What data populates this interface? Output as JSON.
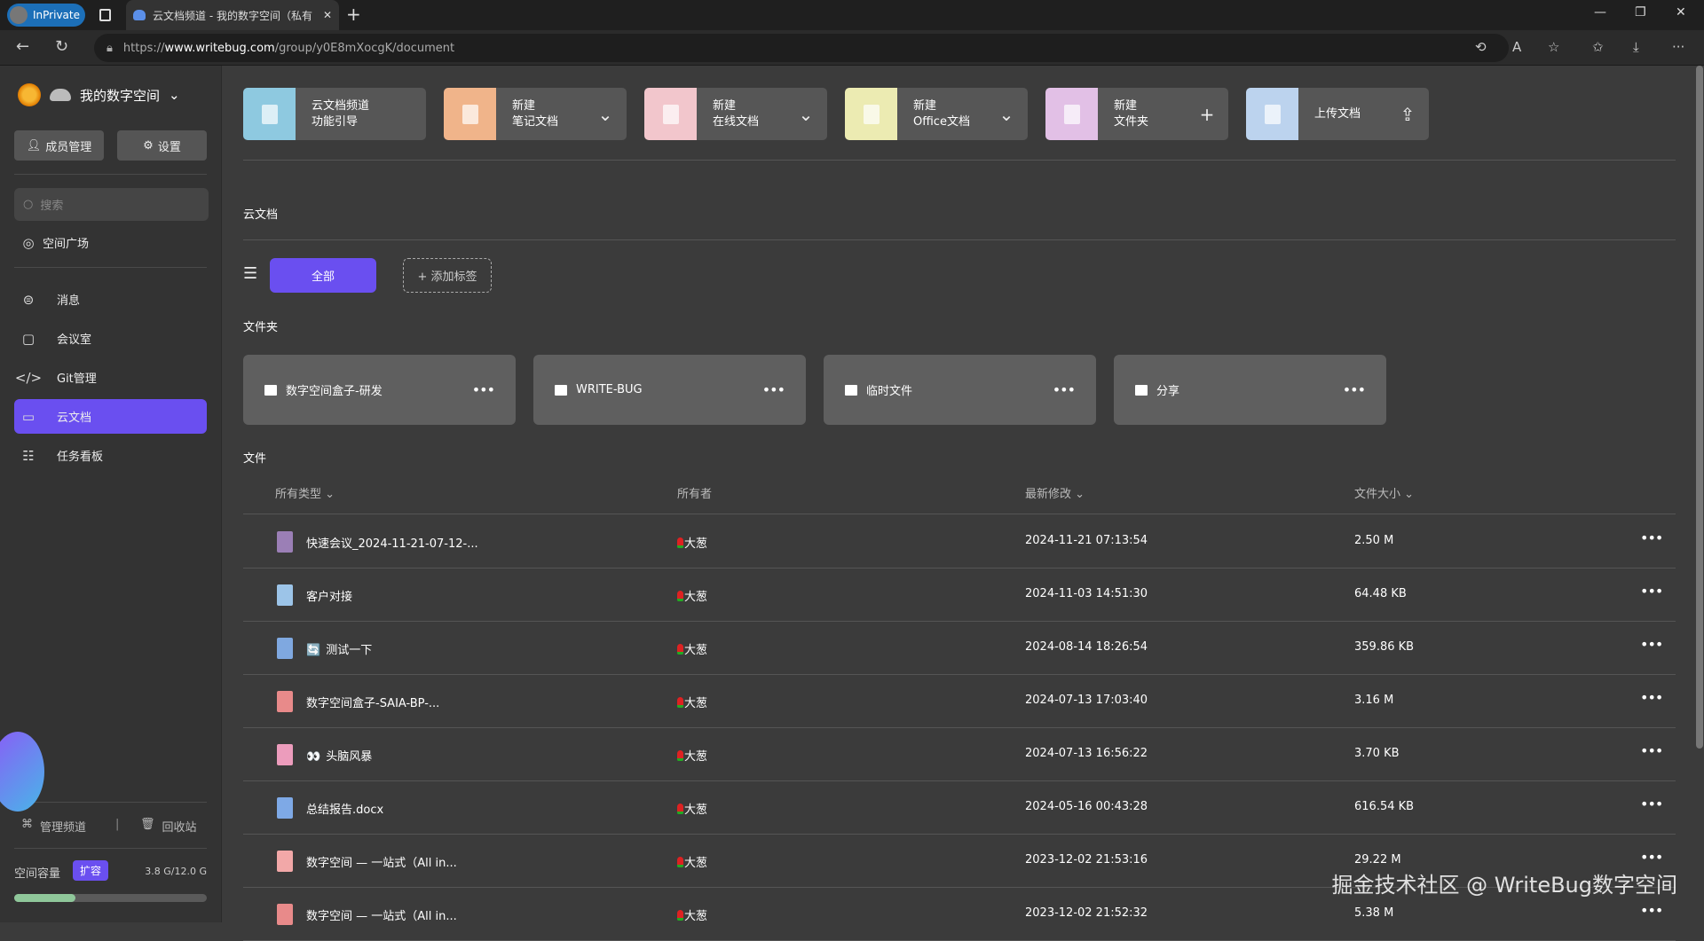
{
  "browser": {
    "inprivate": "InPrivate",
    "tab_title": "云文档频道 - 我的数字空间（私有",
    "url_prefix": "https://",
    "url_host": "www.writebug.com",
    "url_path": "/group/y0E8mXocgK/document"
  },
  "sidebar": {
    "workspace": "我的数字空间",
    "members_btn": "成员管理",
    "settings_btn": "设置",
    "search_placeholder": "搜索",
    "plaza": "空间广场",
    "items": [
      {
        "label": "消息",
        "icon": "message-icon"
      },
      {
        "label": "会议室",
        "icon": "meeting-icon"
      },
      {
        "label": "Git管理",
        "icon": "code-icon"
      },
      {
        "label": "云文档",
        "icon": "folder-icon",
        "active": true
      },
      {
        "label": "任务看板",
        "icon": "kanban-icon"
      }
    ],
    "manage_channel": "管理频道",
    "recycle": "回收站",
    "capacity_label": "空间容量",
    "expand_btn": "扩容",
    "capacity_value": "3.8 G/12.0 G",
    "capacity_fraction": 0.317
  },
  "actions": [
    {
      "l1": "云文档频道",
      "l2": "功能引导",
      "color": "#8ec9e0",
      "act": ""
    },
    {
      "l1": "新建",
      "l2": "笔记文档",
      "color": "#f0b48a",
      "act": "⌄"
    },
    {
      "l1": "新建",
      "l2": "在线文档",
      "color": "#f2c6cc",
      "act": "⌄"
    },
    {
      "l1": "新建",
      "l2": "Office文档",
      "color": "#ecebb2",
      "act": "⌄"
    },
    {
      "l1": "新建",
      "l2": "文件夹",
      "color": "#e2c0e6",
      "act": "+"
    },
    {
      "l1": "上传文档",
      "l2": "",
      "color": "#bcd3ee",
      "act": "⇪"
    }
  ],
  "main": {
    "section_title": "云文档",
    "tag_all": "全部",
    "add_tag": "+ 添加标签",
    "folders_title": "文件夹",
    "files_title": "文件",
    "folders": [
      "数字空间盒子-研发",
      "WRITE-BUG",
      "临时文件",
      "分享"
    ],
    "columns": {
      "type": "所有类型 ⌄",
      "owner": "所有者",
      "modified": "最新修改 ⌄",
      "size": "文件大小 ⌄"
    },
    "files": [
      {
        "name": "快速会议_2024-11-21-07-12-...",
        "owner": "大葱",
        "modified": "2024-11-21 07:13:54",
        "size": "2.50 M",
        "icon_color": "#9b7fb6"
      },
      {
        "name": "客户对接",
        "owner": "大葱",
        "modified": "2024-11-03 14:51:30",
        "size": "64.48 KB",
        "icon_color": "#9cc4e8"
      },
      {
        "name": "测试一下",
        "owner": "大葱",
        "modified": "2024-08-14 18:26:54",
        "size": "359.86 KB",
        "icon_color": "#7fa8e0",
        "emoji": "🔄"
      },
      {
        "name": "数字空间盒子-SAIA-BP-...",
        "owner": "大葱",
        "modified": "2024-07-13 17:03:40",
        "size": "3.16 M",
        "icon_color": "#e88a8a"
      },
      {
        "name": "头脑风暴",
        "owner": "大葱",
        "modified": "2024-07-13 16:56:22",
        "size": "3.70 KB",
        "icon_color": "#ec9cbc",
        "emoji": "👀"
      },
      {
        "name": "总结报告.docx",
        "owner": "大葱",
        "modified": "2024-05-16 00:43:28",
        "size": "616.54 KB",
        "icon_color": "#7ea9e6"
      },
      {
        "name": "数字空间 — 一站式（All in...",
        "owner": "大葱",
        "modified": "2023-12-02 21:53:16",
        "size": "29.22 M",
        "icon_color": "#f2a8a8"
      },
      {
        "name": "数字空间 — 一站式（All in...",
        "owner": "大葱",
        "modified": "2023-12-02 21:52:32",
        "size": "5.38 M",
        "icon_color": "#e88a8a"
      }
    ]
  },
  "watermark": "掘金技术社区 @ WriteBug数字空间"
}
